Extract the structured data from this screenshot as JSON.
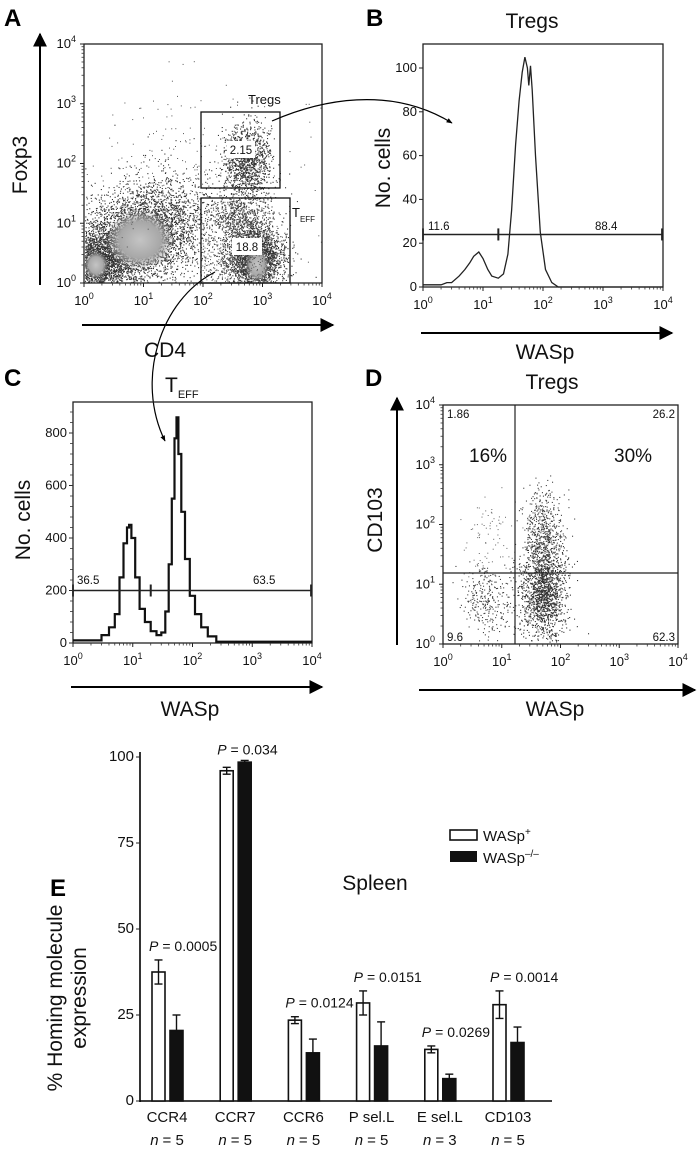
{
  "panels": {
    "A": {
      "letter": "A",
      "xlabel": "CD4",
      "ylabel": "Foxp3",
      "gate_tregs_label": "Tregs",
      "gate_tregs_value": "2.15",
      "gate_teff_label": "T",
      "gate_teff_sub": "EFF",
      "gate_teff_value": "18.8"
    },
    "B": {
      "letter": "B",
      "title": "Tregs",
      "xlabel": "WASp",
      "ylabel": "No. cells",
      "left_gate_value": "11.6",
      "right_gate_value": "88.4"
    },
    "C": {
      "letter": "C",
      "title": "T",
      "title_sub": "EFF",
      "xlabel": "WASp",
      "ylabel": "No. cells",
      "left_gate_value": "36.5",
      "right_gate_value": "63.5"
    },
    "D": {
      "letter": "D",
      "title": "Tregs",
      "xlabel": "WASp",
      "ylabel": "CD103",
      "q_ul": "1.86",
      "q_ur": "26.2",
      "q_ll": "9.6",
      "q_lr": "62.3",
      "pct_left": "16%",
      "pct_right": "30%"
    },
    "E": {
      "letter": "E"
    }
  },
  "log_ticks": [
    {
      "base": "10",
      "exp": "0"
    },
    {
      "base": "10",
      "exp": "1"
    },
    {
      "base": "10",
      "exp": "2"
    },
    {
      "base": "10",
      "exp": "3"
    },
    {
      "base": "10",
      "exp": "4"
    }
  ],
  "chart_data": [
    {
      "panel": "A",
      "type": "scatter",
      "xlabel": "CD4",
      "ylabel": "Foxp3",
      "x_scale": "log",
      "y_scale": "log",
      "xlim": [
        1,
        10000
      ],
      "ylim": [
        1,
        10000
      ],
      "gates": [
        {
          "name": "Tregs",
          "x": [
            100,
            2200
          ],
          "y": [
            39,
            720
          ],
          "percent": 2.15
        },
        {
          "name": "TEFF",
          "x": [
            100,
            3000
          ],
          "y": [
            1,
            26
          ],
          "percent": 18.8
        }
      ]
    },
    {
      "panel": "B",
      "type": "line",
      "title": "Tregs",
      "xlabel": "WASp",
      "ylabel": "No. cells",
      "x_scale": "log",
      "xlim": [
        1,
        10000
      ],
      "ylim": [
        0,
        110
      ],
      "yticks": [
        0,
        20,
        40,
        60,
        80,
        100
      ],
      "x": [
        1,
        2,
        2.5,
        3,
        4,
        5,
        6,
        7,
        8.5,
        10,
        12,
        14,
        18,
        22,
        26,
        30,
        35,
        40,
        45,
        50,
        55,
        58,
        62,
        66,
        75,
        90,
        110,
        140,
        180,
        10000
      ],
      "y": [
        1,
        1,
        2,
        2,
        5,
        8,
        11,
        14,
        16,
        13,
        8,
        5,
        4,
        6,
        15,
        35,
        65,
        85,
        98,
        105,
        100,
        92,
        101,
        90,
        60,
        25,
        8,
        2,
        0,
        0
      ],
      "markers": [
        {
          "range": [
            1,
            18
          ],
          "level": 24,
          "percent": 11.6
        },
        {
          "range": [
            18,
            10000
          ],
          "level": 24,
          "percent": 88.4
        }
      ]
    },
    {
      "panel": "C",
      "type": "line",
      "title": "TEFF",
      "xlabel": "WASp",
      "ylabel": "No. cells",
      "x_scale": "log",
      "xlim": [
        1,
        10000
      ],
      "ylim": [
        0,
        900
      ],
      "yticks": [
        0,
        200,
        400,
        600,
        800
      ],
      "x": [
        1,
        2.3,
        3,
        4,
        5,
        6,
        7,
        8,
        8.7,
        9.5,
        11,
        13,
        16,
        20,
        25,
        30,
        35,
        40,
        45,
        50,
        54,
        58,
        65,
        75,
        90,
        110,
        140,
        180,
        250,
        10000
      ],
      "y": [
        10,
        10,
        30,
        60,
        110,
        250,
        380,
        440,
        450,
        400,
        250,
        130,
        80,
        45,
        30,
        40,
        120,
        300,
        550,
        780,
        860,
        720,
        500,
        320,
        180,
        110,
        60,
        25,
        5,
        5
      ],
      "markers": [
        {
          "range": [
            1,
            20
          ],
          "level": 200,
          "percent": 36.5
        },
        {
          "range": [
            20,
            10000
          ],
          "level": 200,
          "percent": 63.5
        }
      ]
    },
    {
      "panel": "D",
      "type": "scatter",
      "title": "Tregs",
      "xlabel": "WASp",
      "ylabel": "CD103",
      "x_scale": "log",
      "y_scale": "log",
      "xlim": [
        1,
        10000
      ],
      "ylim": [
        1,
        10000
      ],
      "quadrant_thresholds": {
        "x": 16,
        "y": 15
      },
      "quadrants": {
        "upper_left": 1.86,
        "upper_right": 26.2,
        "lower_left": 9.6,
        "lower_right": 62.3
      },
      "annotations": [
        "16%",
        "30%"
      ]
    },
    {
      "panel": "E",
      "type": "bar",
      "title": "Spleen",
      "xlabel": "",
      "ylabel": "% Homing molecule expression",
      "ylabel_lines": [
        "% Homing molecule",
        "expression"
      ],
      "ylim": [
        0,
        100
      ],
      "yticks": [
        0,
        25,
        50,
        75,
        100
      ],
      "categories": [
        "CCR4",
        "CCR7",
        "CCR6",
        "P sel.L",
        "E sel.L",
        "CD103"
      ],
      "n_symbol": "n",
      "n_values": [
        "= 5",
        "= 5",
        "= 5",
        "= 5",
        "= 3",
        "= 5"
      ],
      "p_symbol": "P",
      "p_values": [
        "= 0.0005",
        "= 0.034",
        "= 0.0124",
        "= 0.0151",
        "= 0.0269",
        "= 0.0014"
      ],
      "series": [
        {
          "name": "WASp",
          "sup": "+",
          "color": "#ffffff",
          "values": [
            37.5,
            96,
            23.5,
            28.5,
            15,
            28
          ],
          "errors": [
            3.5,
            1,
            1,
            3.5,
            1,
            4
          ]
        },
        {
          "name": "WASp",
          "sup": "–/–",
          "color": "#111111",
          "values": [
            20.5,
            98.5,
            14,
            16,
            6.5,
            17
          ],
          "errors": [
            4.5,
            0.5,
            4,
            7,
            1.3,
            4.5
          ]
        }
      ],
      "legend": "top-right"
    }
  ]
}
